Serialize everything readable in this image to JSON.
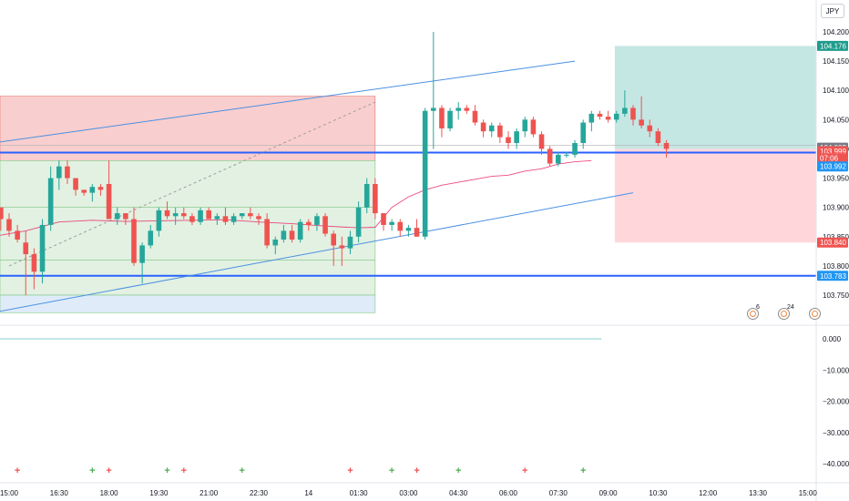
{
  "currency_badge": "JPY",
  "colors": {
    "up": "#26a69a",
    "down": "#ef5350",
    "sma": "#e91e63",
    "trend": "#4a90e2",
    "level": "#2962ff",
    "long_profit": "#b2dfdb",
    "long_loss": "#ffcdd2",
    "zone_red": "#f8c9c9",
    "zone_green": "#dff0df",
    "zone_blue": "#dbe9f8",
    "tag_teal": "#1e9c8c",
    "tag_red": "#ef5350",
    "tag_blue": "#2196f3",
    "tag_gray": "#787b86"
  },
  "events": [
    {
      "label": "6",
      "icon": "economic-event-icon"
    },
    {
      "label": "24",
      "icon": "economic-event-icon"
    },
    {
      "label": "",
      "icon": "economic-event-icon"
    }
  ],
  "price_tags": [
    {
      "label": "104.176",
      "price": 104.176,
      "color": "#1e9c8c"
    },
    {
      "label": "104.002",
      "price": 104.002,
      "color": "#787b86"
    },
    {
      "label": "103.999",
      "price": 103.996,
      "color": "#ef5350"
    },
    {
      "label": "07:06",
      "price": 103.984,
      "color": "#ef5350"
    },
    {
      "label": "103.992",
      "price": 103.97,
      "color": "#2196f3"
    },
    {
      "label": "103.840",
      "price": 103.84,
      "color": "#ef5350"
    },
    {
      "label": "103.783",
      "price": 103.783,
      "color": "#2196f3"
    }
  ],
  "chart_data": [
    {
      "type": "candlestick",
      "title": "",
      "y_axis_side": "right",
      "ylim": [
        103.72,
        104.245
      ],
      "y_ticks": [
        "104.200",
        "104.150",
        "104.100",
        "104.050",
        "104.000",
        "103.950",
        "103.900",
        "103.850",
        "103.800",
        "103.750"
      ],
      "y_tick_values": [
        104.2,
        104.15,
        104.1,
        104.05,
        104.0,
        103.95,
        103.9,
        103.85,
        103.8,
        103.75
      ],
      "x_ticks": [
        "15:00",
        "16:30",
        "18:00",
        "19:30",
        "21:00",
        "22:30",
        "14",
        "01:30",
        "03:00",
        "04:30",
        "06:00",
        "07:30",
        "09:00",
        "10:30",
        "12:00",
        "13:30",
        "15:00"
      ],
      "x_tick_hours": [
        15.0,
        16.5,
        18.0,
        19.5,
        21.0,
        22.5,
        24.0,
        25.5,
        27.0,
        28.5,
        30.0,
        31.5,
        33.0,
        34.5,
        36.0,
        37.5,
        39.0
      ],
      "candle_interval_hours": 0.25,
      "first_candle_hour": 14.5,
      "candles": [
        [
          103.87,
          103.91,
          103.86,
          103.9
        ],
        [
          103.9,
          103.9,
          103.86,
          103.88
        ],
        [
          103.88,
          103.89,
          103.85,
          103.86
        ],
        [
          103.86,
          103.87,
          103.84,
          103.845
        ],
        [
          103.84,
          103.86,
          103.75,
          103.82
        ],
        [
          103.82,
          103.83,
          103.76,
          103.79
        ],
        [
          103.79,
          103.88,
          103.77,
          103.87
        ],
        [
          103.87,
          103.97,
          103.86,
          103.95
        ],
        [
          103.95,
          103.98,
          103.93,
          103.97
        ],
        [
          103.97,
          103.98,
          103.94,
          103.95
        ],
        [
          103.95,
          103.95,
          103.92,
          103.93
        ],
        [
          103.93,
          103.93,
          103.92,
          103.925
        ],
        [
          103.925,
          103.94,
          103.91,
          103.935
        ],
        [
          103.935,
          103.94,
          103.92,
          103.93
        ],
        [
          103.94,
          103.98,
          103.88,
          103.88
        ],
        [
          103.88,
          103.9,
          103.87,
          103.89
        ],
        [
          103.89,
          103.89,
          103.87,
          103.88
        ],
        [
          103.88,
          103.9,
          103.8,
          103.805
        ],
        [
          103.805,
          103.84,
          103.77,
          103.835
        ],
        [
          103.835,
          103.87,
          103.83,
          103.86
        ],
        [
          103.86,
          103.9,
          103.85,
          103.895
        ],
        [
          103.895,
          103.91,
          103.88,
          103.885
        ],
        [
          103.885,
          103.9,
          103.87,
          103.89
        ],
        [
          103.89,
          103.9,
          103.88,
          103.885
        ],
        [
          103.885,
          103.89,
          103.87,
          103.875
        ],
        [
          103.875,
          103.9,
          103.87,
          103.895
        ],
        [
          103.895,
          103.9,
          103.88,
          103.88
        ],
        [
          103.88,
          103.89,
          103.87,
          103.885
        ],
        [
          103.885,
          103.9,
          103.87,
          103.875
        ],
        [
          103.875,
          103.89,
          103.87,
          103.885
        ],
        [
          103.885,
          103.89,
          103.88,
          103.89
        ],
        [
          103.89,
          103.9,
          103.88,
          103.885
        ],
        [
          103.885,
          103.89,
          103.87,
          103.88
        ],
        [
          103.88,
          103.89,
          103.83,
          103.835
        ],
        [
          103.835,
          103.85,
          103.82,
          103.845
        ],
        [
          103.845,
          103.87,
          103.84,
          103.86
        ],
        [
          103.86,
          103.87,
          103.84,
          103.845
        ],
        [
          103.845,
          103.88,
          103.84,
          103.875
        ],
        [
          103.875,
          103.88,
          103.86,
          103.87
        ],
        [
          103.87,
          103.89,
          103.86,
          103.885
        ],
        [
          103.885,
          103.89,
          103.85,
          103.855
        ],
        [
          103.855,
          103.86,
          103.8,
          103.835
        ],
        [
          103.835,
          103.85,
          103.8,
          103.83
        ],
        [
          103.83,
          103.86,
          103.82,
          103.85
        ],
        [
          103.85,
          103.91,
          103.84,
          103.9
        ],
        [
          103.9,
          103.95,
          103.89,
          103.94
        ],
        [
          103.94,
          103.95,
          103.88,
          103.89
        ],
        [
          103.89,
          103.89,
          103.86,
          103.87
        ],
        [
          103.87,
          103.88,
          103.86,
          103.875
        ],
        [
          103.875,
          103.88,
          103.85,
          103.86
        ],
        [
          103.86,
          103.87,
          103.85,
          103.865
        ],
        [
          103.865,
          103.88,
          103.85,
          103.85
        ],
        [
          103.85,
          104.07,
          103.845,
          104.065
        ],
        [
          104.065,
          104.2,
          104.0,
          104.07
        ],
        [
          104.07,
          104.075,
          104.02,
          104.035
        ],
        [
          104.035,
          104.07,
          104.03,
          104.065
        ],
        [
          104.065,
          104.08,
          104.05,
          104.07
        ],
        [
          104.07,
          104.075,
          104.06,
          104.065
        ],
        [
          104.065,
          104.075,
          104.04,
          104.045
        ],
        [
          104.045,
          104.05,
          104.02,
          104.03
        ],
        [
          104.03,
          104.045,
          104.02,
          104.04
        ],
        [
          104.04,
          104.045,
          104.01,
          104.02
        ],
        [
          104.02,
          104.03,
          104.0,
          104.01
        ],
        [
          104.01,
          104.035,
          104.0,
          104.03
        ],
        [
          104.03,
          104.055,
          104.02,
          104.05
        ],
        [
          104.05,
          104.055,
          104.02,
          104.025
        ],
        [
          104.025,
          104.03,
          103.99,
          104.0
        ],
        [
          104.0,
          104.005,
          103.97,
          103.975
        ],
        [
          103.975,
          103.995,
          103.97,
          103.99
        ],
        [
          103.99,
          103.995,
          103.985,
          103.99
        ],
        [
          103.99,
          104.015,
          103.985,
          104.01
        ],
        [
          104.01,
          104.05,
          104.0,
          104.045
        ],
        [
          104.045,
          104.065,
          104.03,
          104.06
        ],
        [
          104.06,
          104.065,
          104.05,
          104.055
        ],
        [
          104.055,
          104.065,
          104.045,
          104.05
        ],
        [
          104.05,
          104.065,
          104.045,
          104.06
        ],
        [
          104.06,
          104.1,
          104.055,
          104.07
        ],
        [
          104.07,
          104.075,
          104.04,
          104.05
        ],
        [
          104.05,
          104.09,
          104.035,
          104.04
        ],
        [
          104.04,
          104.05,
          104.02,
          104.03
        ],
        [
          104.03,
          104.035,
          104.005,
          104.01
        ],
        [
          104.01,
          104.015,
          103.985,
          104.0
        ]
      ],
      "sma_label": "",
      "sma": [
        [
          14.5,
          103.85
        ],
        [
          15.5,
          103.86
        ],
        [
          16.5,
          103.875
        ],
        [
          17.5,
          103.878
        ],
        [
          18.5,
          103.876
        ],
        [
          19.5,
          103.877
        ],
        [
          20.5,
          103.878
        ],
        [
          21.5,
          103.879
        ],
        [
          22.5,
          103.875
        ],
        [
          23.5,
          103.872
        ],
        [
          24.5,
          103.868
        ],
        [
          25.5,
          103.865
        ],
        [
          26.0,
          103.866
        ],
        [
          26.5,
          103.9
        ],
        [
          27.0,
          103.918
        ],
        [
          27.5,
          103.93
        ],
        [
          28.0,
          103.938
        ],
        [
          28.5,
          103.943
        ],
        [
          29.0,
          103.948
        ],
        [
          29.5,
          103.953
        ],
        [
          30.0,
          103.955
        ],
        [
          30.5,
          103.962
        ],
        [
          31.0,
          103.966
        ],
        [
          31.5,
          103.974
        ],
        [
          32.0,
          103.978
        ],
        [
          32.5,
          103.98
        ]
      ],
      "trendlines": [
        {
          "from": [
            14.5,
            104.01
          ],
          "to": [
            32.0,
            104.15
          ],
          "style": "solid"
        },
        {
          "from": [
            14.5,
            103.72
          ],
          "to": [
            33.75,
            103.925
          ],
          "style": "solid"
        },
        {
          "from": [
            15.0,
            103.8
          ],
          "to": [
            26.0,
            104.08
          ],
          "style": "dashed"
        }
      ],
      "horizontal_levels": [
        104.0,
        103.783
      ],
      "zones": [
        {
          "y_top": 104.09,
          "y_bottom": 103.98,
          "x_end_hour": 26.0,
          "kind": "red"
        },
        {
          "y_top": 103.98,
          "y_bottom": 103.75,
          "x_end_hour": 26.0,
          "kind": "green"
        },
        {
          "y_top": 103.75,
          "y_bottom": 103.72,
          "x_end_hour": 26.0,
          "kind": "blue"
        }
      ],
      "long_position": {
        "start_hour": 33.2,
        "end_hour": 39.6,
        "entry": 104.0,
        "target": 104.176,
        "stop": 103.84
      }
    },
    {
      "type": "line",
      "title": "",
      "ylim": [
        -42,
        2
      ],
      "y_ticks": [
        "0.000",
        "−10.000",
        "−20.000",
        "−30.000",
        "−40.000"
      ],
      "y_tick_values": [
        0,
        -10,
        -20,
        -30,
        -40
      ],
      "series_line": {
        "value": 0.0,
        "to_hour": 32.8
      },
      "signals": [
        {
          "hour": 14.0,
          "kind": "green"
        },
        {
          "hour": 15.25,
          "kind": "red"
        },
        {
          "hour": 17.5,
          "kind": "green"
        },
        {
          "hour": 18.0,
          "kind": "red"
        },
        {
          "hour": 19.75,
          "kind": "green"
        },
        {
          "hour": 20.25,
          "kind": "red"
        },
        {
          "hour": 22.0,
          "kind": "green"
        },
        {
          "hour": 25.25,
          "kind": "red"
        },
        {
          "hour": 26.5,
          "kind": "green"
        },
        {
          "hour": 27.25,
          "kind": "red"
        },
        {
          "hour": 28.5,
          "kind": "green"
        },
        {
          "hour": 30.5,
          "kind": "red"
        },
        {
          "hour": 32.25,
          "kind": "green"
        }
      ]
    }
  ]
}
